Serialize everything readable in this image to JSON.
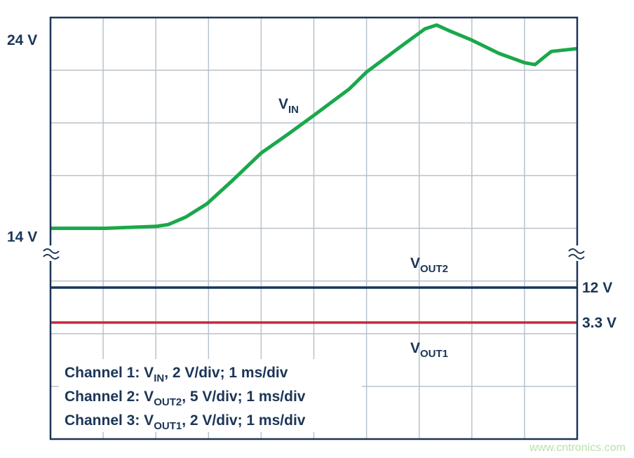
{
  "chart_data": {
    "type": "line",
    "xlim": [
      0,
      10
    ],
    "ylim": [
      2.8,
      25.2
    ],
    "yticks": [
      {
        "value": 24,
        "label": "24 V"
      },
      {
        "value": 14,
        "label": "14 V"
      }
    ],
    "y2lim": [
      -25.6,
      79
    ],
    "y2ticks": [
      {
        "value": 12,
        "label": "12 V"
      },
      {
        "value": 3.3,
        "label": "3.3 V"
      }
    ],
    "grid": true,
    "series": [
      {
        "label": [
          "V",
          "IN"
        ],
        "color": "#1aa84b",
        "x": [
          0,
          1.04,
          2,
          2.24,
          2.57,
          2.97,
          3.44,
          4.0,
          4.51,
          5.0,
          5.67,
          6.0,
          6.67,
          7.11,
          7.33,
          7.57,
          8.0,
          8.51,
          9.0,
          9.2,
          9.33,
          9.51,
          10.0
        ],
        "values": [
          14.0,
          14.0,
          14.1,
          14.2,
          14.6,
          15.3,
          16.5,
          18.0,
          19.0,
          20.0,
          21.4,
          22.3,
          23.7,
          24.6,
          24.8,
          24.5,
          24.0,
          23.3,
          22.8,
          22.7,
          23.0,
          23.4,
          23.55
        ]
      },
      {
        "label": [
          "V",
          "OUT2"
        ],
        "color": "#12365e",
        "axis": "y2",
        "x": [
          0,
          10
        ],
        "values": [
          12,
          12
        ]
      },
      {
        "label": [
          "V",
          "OUT1"
        ],
        "color": "#c8283c",
        "axis": "y2",
        "x": [
          0,
          10
        ],
        "values": [
          3.3,
          3.3
        ]
      }
    ],
    "legend": [
      [
        "Channel 1: V",
        "IN",
        ", 2 V/div; 1 ms/div"
      ],
      [
        "Channel 2: V",
        "OUT2",
        ", 5 V/div; 1 ms/div"
      ],
      [
        "Channel 3: V",
        "OUT1",
        ", 2 V/div; 1 ms/div"
      ]
    ],
    "watermark": "www.cntronics.com"
  }
}
